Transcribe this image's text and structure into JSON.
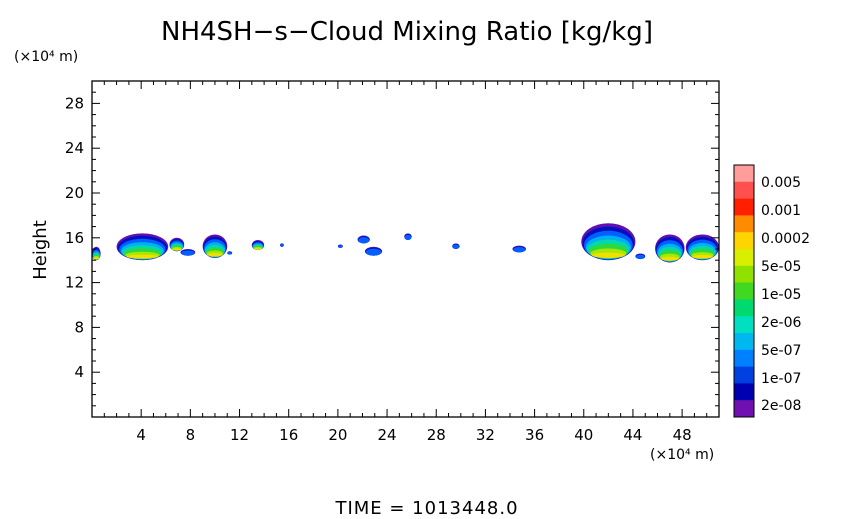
{
  "chart_data": {
    "type": "heatmap",
    "title": "NH4SH−s−Cloud Mixing Ratio [kg/kg]",
    "ylabel": "Height",
    "xlabel": "",
    "x_unit": "(×10⁴ m)",
    "y_unit": "(×10⁴ m)",
    "xlim": [
      0,
      51
    ],
    "ylim": [
      0,
      30
    ],
    "x_ticks": [
      4,
      8,
      12,
      16,
      20,
      24,
      28,
      32,
      36,
      40,
      44,
      48
    ],
    "y_ticks": [
      4,
      8,
      12,
      16,
      20,
      24,
      28
    ],
    "time_label": "TIME  =  1013448.0",
    "colorbar": {
      "labels": [
        "0.005",
        "0.001",
        "0.0002",
        "5e-05",
        "1e-05",
        "2e-06",
        "5e-07",
        "1e-07",
        "2e-08"
      ],
      "colors": [
        "#ff9c9c",
        "#ff5050",
        "#ff2000",
        "#ff8c00",
        "#ffd400",
        "#d8f000",
        "#90e000",
        "#40d820",
        "#00d870",
        "#00e0c0",
        "#00b8f0",
        "#0080ff",
        "#0040e0",
        "#0000b0",
        "#7010b0"
      ]
    },
    "cloud_layers": [
      {
        "x0": 0.0,
        "x1": 0.7,
        "bottom": 14.0,
        "top": 15.2
      },
      {
        "x0": 2.0,
        "x1": 6.2,
        "bottom": 14.0,
        "top": 16.4
      },
      {
        "x0": 6.3,
        "x1": 7.5,
        "bottom": 14.8,
        "top": 16.0
      },
      {
        "x0": 7.2,
        "x1": 8.4,
        "bottom": 14.4,
        "top": 15.0
      },
      {
        "x0": 9.0,
        "x1": 11.0,
        "bottom": 14.2,
        "top": 16.3
      },
      {
        "x0": 11.0,
        "x1": 11.4,
        "bottom": 14.5,
        "top": 14.8
      },
      {
        "x0": 13.0,
        "x1": 14.0,
        "bottom": 14.9,
        "top": 15.8
      },
      {
        "x0": 15.3,
        "x1": 15.6,
        "bottom": 15.2,
        "top": 15.5
      },
      {
        "x0": 20.0,
        "x1": 20.4,
        "bottom": 15.1,
        "top": 15.4
      },
      {
        "x0": 21.6,
        "x1": 22.6,
        "bottom": 15.5,
        "top": 16.2
      },
      {
        "x0": 22.2,
        "x1": 23.6,
        "bottom": 14.4,
        "top": 15.2
      },
      {
        "x0": 25.4,
        "x1": 26.0,
        "bottom": 15.8,
        "top": 16.4
      },
      {
        "x0": 29.3,
        "x1": 29.9,
        "bottom": 15.0,
        "top": 15.5
      },
      {
        "x0": 34.2,
        "x1": 35.3,
        "bottom": 14.7,
        "top": 15.3
      },
      {
        "x0": 39.8,
        "x1": 44.2,
        "bottom": 14.0,
        "top": 17.3
      },
      {
        "x0": 44.2,
        "x1": 45.0,
        "bottom": 14.1,
        "top": 14.6
      },
      {
        "x0": 45.8,
        "x1": 48.2,
        "bottom": 13.8,
        "top": 16.3
      },
      {
        "x0": 48.3,
        "x1": 51.0,
        "bottom": 14.0,
        "top": 16.3
      }
    ]
  }
}
